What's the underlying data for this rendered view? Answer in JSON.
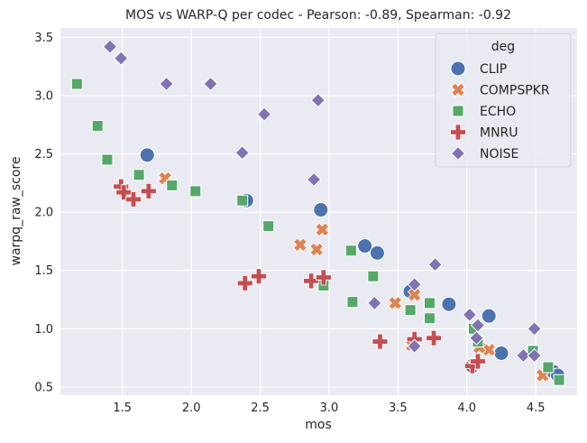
{
  "chart_data": {
    "type": "scatter",
    "title": "MOS vs WARP-Q per codec - Pearson: -0.89, Spearman: -0.92",
    "xlabel": "mos",
    "ylabel": "warpq_raw_score",
    "xlim": [
      1.05,
      4.8
    ],
    "ylim": [
      0.43,
      3.58
    ],
    "xticks": [
      "1.5",
      "2.0",
      "2.5",
      "3.0",
      "3.5",
      "4.0",
      "4.5"
    ],
    "yticks": [
      "0.5",
      "1.0",
      "1.5",
      "2.0",
      "2.5",
      "3.0",
      "3.5"
    ],
    "grid": true,
    "legend_title": "deg",
    "legend_position": "top-right",
    "series": [
      {
        "name": "CLIP",
        "marker": "circle",
        "color": "#4c72b0",
        "points": [
          [
            1.68,
            2.49
          ],
          [
            2.4,
            2.1
          ],
          [
            2.94,
            2.02
          ],
          [
            3.26,
            1.71
          ],
          [
            3.35,
            1.65
          ],
          [
            3.59,
            1.32
          ],
          [
            3.87,
            1.21
          ],
          [
            4.16,
            1.11
          ],
          [
            4.25,
            0.79
          ],
          [
            4.04,
            0.68
          ],
          [
            4.63,
            0.63
          ],
          [
            4.66,
            0.6
          ]
        ]
      },
      {
        "name": "COMPSPKR",
        "marker": "x",
        "color": "#dd8452",
        "points": [
          [
            1.81,
            2.29
          ],
          [
            2.79,
            1.72
          ],
          [
            2.91,
            1.68
          ],
          [
            2.95,
            1.85
          ],
          [
            3.48,
            1.22
          ],
          [
            3.62,
            1.29
          ],
          [
            4.16,
            0.82
          ],
          [
            4.09,
            0.84
          ],
          [
            4.55,
            0.6
          ],
          [
            3.6,
            0.86
          ],
          [
            4.05,
            0.7
          ]
        ]
      },
      {
        "name": "ECHO",
        "marker": "square",
        "color": "#55a868",
        "points": [
          [
            1.17,
            3.1
          ],
          [
            1.32,
            2.74
          ],
          [
            1.39,
            2.45
          ],
          [
            1.62,
            2.32
          ],
          [
            1.86,
            2.23
          ],
          [
            2.03,
            2.18
          ],
          [
            2.37,
            2.1
          ],
          [
            2.56,
            1.88
          ],
          [
            2.96,
            1.37
          ],
          [
            3.16,
            1.67
          ],
          [
            3.17,
            1.23
          ],
          [
            3.32,
            1.45
          ],
          [
            3.59,
            1.16
          ],
          [
            3.73,
            1.22
          ],
          [
            3.73,
            1.09
          ],
          [
            4.05,
            1.0
          ],
          [
            4.08,
            0.89
          ],
          [
            4.48,
            0.81
          ],
          [
            4.59,
            0.67
          ],
          [
            4.67,
            0.56
          ]
        ]
      },
      {
        "name": "MNRU",
        "marker": "plus",
        "color": "#c44e52",
        "points": [
          [
            1.49,
            2.22
          ],
          [
            1.51,
            2.17
          ],
          [
            1.58,
            2.11
          ],
          [
            1.69,
            2.18
          ],
          [
            2.39,
            1.39
          ],
          [
            2.49,
            1.45
          ],
          [
            2.87,
            1.41
          ],
          [
            2.96,
            1.44
          ],
          [
            3.37,
            0.89
          ],
          [
            3.62,
            0.91
          ],
          [
            3.76,
            0.92
          ],
          [
            4.04,
            0.68
          ],
          [
            4.08,
            0.72
          ]
        ]
      },
      {
        "name": "NOISE",
        "marker": "diamond",
        "color": "#8172b3",
        "points": [
          [
            1.41,
            3.42
          ],
          [
            1.49,
            3.32
          ],
          [
            1.82,
            3.1
          ],
          [
            2.14,
            3.1
          ],
          [
            2.37,
            2.51
          ],
          [
            2.53,
            2.84
          ],
          [
            2.92,
            2.96
          ],
          [
            2.89,
            2.28
          ],
          [
            3.33,
            1.22
          ],
          [
            3.62,
            1.38
          ],
          [
            3.77,
            1.55
          ],
          [
            3.62,
            0.85
          ],
          [
            4.02,
            1.12
          ],
          [
            4.08,
            1.03
          ],
          [
            4.07,
            0.92
          ],
          [
            4.41,
            0.77
          ],
          [
            4.49,
            1.0
          ],
          [
            4.49,
            0.77
          ]
        ]
      }
    ]
  }
}
